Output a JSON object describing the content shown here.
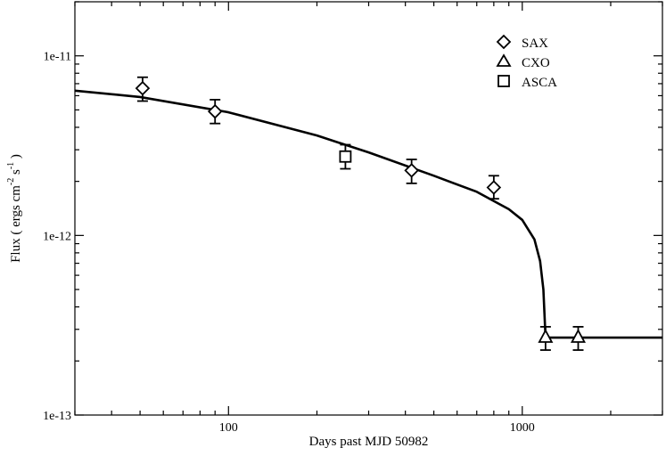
{
  "chart_data": {
    "type": "scatter",
    "xlabel": "Days past MJD 50982",
    "ylabel": {
      "main": "Flux ( ergs cm",
      "exp1": "-2",
      "mid": " s",
      "exp2": "-1",
      "end": " )"
    },
    "x_scale": "log",
    "y_scale": "log",
    "xlim": [
      30,
      3000
    ],
    "ylim": [
      1e-13,
      2e-11
    ],
    "x_major_ticks": [
      100,
      1000
    ],
    "x_tick_labels": [
      "100",
      "1000"
    ],
    "y_major_ticks": [
      1e-13,
      1e-12,
      1e-11
    ],
    "y_tick_labels": [
      "1e-13",
      "1e-12",
      "1e-11"
    ],
    "grid": false,
    "legend_position": "top-right",
    "series": [
      {
        "name": "SAX",
        "marker": "diamond",
        "points": [
          {
            "x": 51,
            "y": 6.6e-12,
            "ylo": 5.6e-12,
            "yhi": 7.6e-12
          },
          {
            "x": 90,
            "y": 4.9e-12,
            "ylo": 4.2e-12,
            "yhi": 5.7e-12
          },
          {
            "x": 420,
            "y": 2.3e-12,
            "ylo": 1.95e-12,
            "yhi": 2.65e-12
          },
          {
            "x": 800,
            "y": 1.85e-12,
            "ylo": 1.6e-12,
            "yhi": 2.15e-12
          }
        ]
      },
      {
        "name": "CXO",
        "marker": "triangle",
        "points": [
          {
            "x": 1200,
            "y": 2.7e-13,
            "ylo": 2.3e-13,
            "yhi": 3.1e-13
          },
          {
            "x": 1550,
            "y": 2.7e-13,
            "ylo": 2.3e-13,
            "yhi": 3.1e-13
          }
        ]
      },
      {
        "name": "ASCA",
        "marker": "square",
        "points": [
          {
            "x": 250,
            "y": 2.75e-12,
            "ylo": 2.35e-12,
            "yhi": 3.2e-12
          }
        ]
      }
    ],
    "fit_curve": [
      {
        "x": 30,
        "y": 6.4e-12
      },
      {
        "x": 50,
        "y": 5.9e-12
      },
      {
        "x": 100,
        "y": 4.85e-12
      },
      {
        "x": 200,
        "y": 3.6e-12
      },
      {
        "x": 300,
        "y": 2.9e-12
      },
      {
        "x": 500,
        "y": 2.15e-12
      },
      {
        "x": 700,
        "y": 1.75e-12
      },
      {
        "x": 900,
        "y": 1.4e-12
      },
      {
        "x": 1000,
        "y": 1.22e-12
      },
      {
        "x": 1100,
        "y": 9.5e-13
      },
      {
        "x": 1150,
        "y": 7.2e-13
      },
      {
        "x": 1180,
        "y": 5e-13
      },
      {
        "x": 1200,
        "y": 2.7e-13
      },
      {
        "x": 3000,
        "y": 2.7e-13
      }
    ]
  }
}
